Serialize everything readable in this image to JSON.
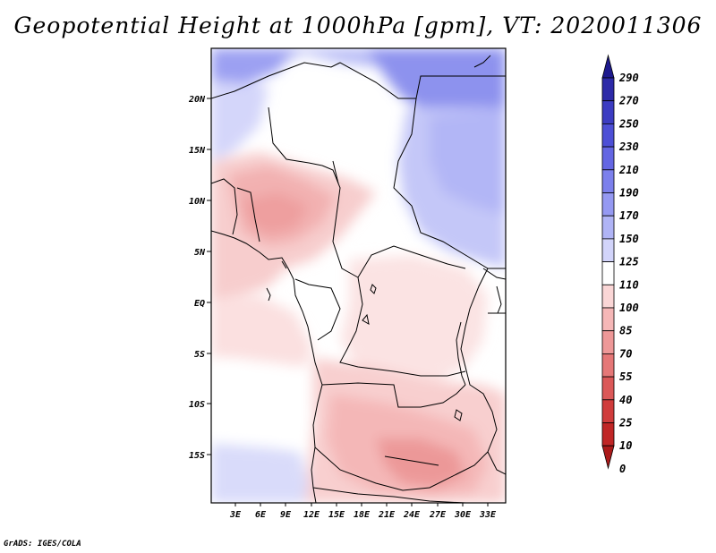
{
  "title": "Geopotential Height at 1000hPa [gpm], VT: 2020011306",
  "credit": "GrADS: IGES/COLA",
  "map": {
    "lon_labels": [
      "3E",
      "6E",
      "9E",
      "12E",
      "15E",
      "18E",
      "21E",
      "24E",
      "27E",
      "30E",
      "33E"
    ],
    "lat_labels": [
      "20N",
      "15N",
      "10N",
      "5N",
      "EQ",
      "5S",
      "10S",
      "15S"
    ]
  },
  "colorbar": {
    "labels": [
      "290",
      "270",
      "250",
      "230",
      "210",
      "190",
      "170",
      "150",
      "125",
      "110",
      "100",
      "85",
      "70",
      "55",
      "40",
      "25",
      "10",
      "0"
    ],
    "colors": [
      "#1e1a8e",
      "#2d2aa8",
      "#3c3cc2",
      "#4d4fd6",
      "#6466e3",
      "#7c80ec",
      "#9599f2",
      "#b0b4f6",
      "#d2d4fa",
      "#ffffff",
      "#fad6d6",
      "#f5b7b7",
      "#ee9898",
      "#e57777",
      "#db5858",
      "#d03c3c",
      "#c02626",
      "#ab1a1a"
    ]
  }
}
